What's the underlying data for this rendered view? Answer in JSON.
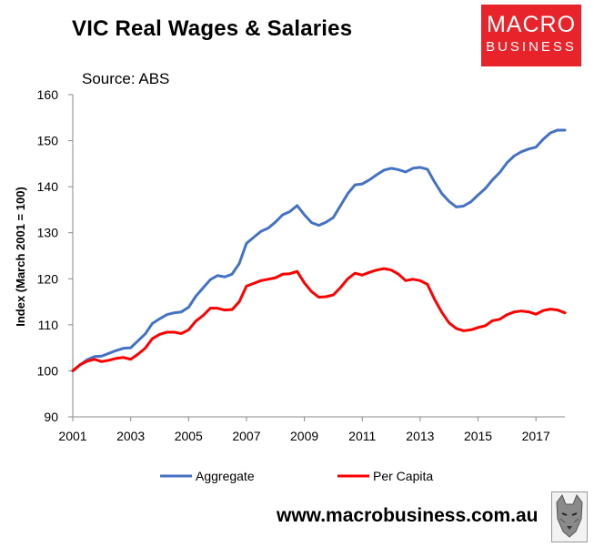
{
  "header": {
    "title": "VIC Real Wages & Salaries",
    "source": "Source: ABS"
  },
  "logo": {
    "line1": "MACRO",
    "line2": "BUSINESS"
  },
  "footer": {
    "url": "www.macrobusiness.com.au"
  },
  "colors": {
    "aggregate": "#4472c4",
    "per_capita": "#ff0000",
    "logo_bg": "#e8232a"
  },
  "chart_data": {
    "type": "line",
    "title": "VIC Real Wages & Salaries",
    "ylabel": "Index (March 2001 = 100)",
    "xlabel": "",
    "ylim": [
      90,
      160
    ],
    "xlim": [
      2001,
      2018
    ],
    "yticks": [
      90,
      100,
      110,
      120,
      130,
      140,
      150,
      160
    ],
    "xticks": [
      2001,
      2003,
      2005,
      2007,
      2009,
      2011,
      2013,
      2015,
      2017
    ],
    "legend_position": "bottom",
    "grid": false,
    "x": [
      2001.0,
      2001.25,
      2001.5,
      2001.75,
      2002.0,
      2002.25,
      2002.5,
      2002.75,
      2003.0,
      2003.25,
      2003.5,
      2003.75,
      2004.0,
      2004.25,
      2004.5,
      2004.75,
      2005.0,
      2005.25,
      2005.5,
      2005.75,
      2006.0,
      2006.25,
      2006.5,
      2006.75,
      2007.0,
      2007.25,
      2007.5,
      2007.75,
      2008.0,
      2008.25,
      2008.5,
      2008.75,
      2009.0,
      2009.25,
      2009.5,
      2009.75,
      2010.0,
      2010.25,
      2010.5,
      2010.75,
      2011.0,
      2011.25,
      2011.5,
      2011.75,
      2012.0,
      2012.25,
      2012.5,
      2012.75,
      2013.0,
      2013.25,
      2013.5,
      2013.75,
      2014.0,
      2014.25,
      2014.5,
      2014.75,
      2015.0,
      2015.25,
      2015.5,
      2015.75,
      2016.0,
      2016.25,
      2016.5,
      2016.75,
      2017.0,
      2017.25,
      2017.5,
      2017.75,
      2018.0
    ],
    "series": [
      {
        "name": "Aggregate",
        "color": "#4472c4",
        "values": [
          100.0,
          101.3,
          102.4,
          103.1,
          103.2,
          103.8,
          104.4,
          104.9,
          105.0,
          106.5,
          108.0,
          110.3,
          111.3,
          112.2,
          112.6,
          112.8,
          113.8,
          116.2,
          118.0,
          119.8,
          120.7,
          120.4,
          121.0,
          123.3,
          127.7,
          129.0,
          130.3,
          131.0,
          132.3,
          133.9,
          134.6,
          135.9,
          133.9,
          132.2,
          131.6,
          132.3,
          133.3,
          135.9,
          138.5,
          140.4,
          140.6,
          141.5,
          142.6,
          143.6,
          144.0,
          143.7,
          143.2,
          144.0,
          144.2,
          143.8,
          141.0,
          138.5,
          136.8,
          135.6,
          135.8,
          136.7,
          138.2,
          139.6,
          141.5,
          143.1,
          145.2,
          146.7,
          147.6,
          148.2,
          148.6,
          150.3,
          151.7,
          152.3,
          152.3
        ]
      },
      {
        "name": "Per Capita",
        "color": "#ff0000",
        "values": [
          100.0,
          101.3,
          102.1,
          102.5,
          102.0,
          102.3,
          102.7,
          102.9,
          102.5,
          103.6,
          104.9,
          107.0,
          107.9,
          108.4,
          108.4,
          108.1,
          108.9,
          110.8,
          112.0,
          113.6,
          113.6,
          113.2,
          113.3,
          115.0,
          118.4,
          119.0,
          119.6,
          119.9,
          120.2,
          121.0,
          121.1,
          121.6,
          119.1,
          117.2,
          116.0,
          116.1,
          116.5,
          118.1,
          120.0,
          121.2,
          120.8,
          121.4,
          121.9,
          122.2,
          121.9,
          121.0,
          119.6,
          119.9,
          119.6,
          118.8,
          115.5,
          112.7,
          110.4,
          109.2,
          108.7,
          108.9,
          109.4,
          109.8,
          110.9,
          111.2,
          112.2,
          112.8,
          113.0,
          112.8,
          112.3,
          113.1,
          113.4,
          113.2,
          112.6
        ]
      }
    ]
  }
}
